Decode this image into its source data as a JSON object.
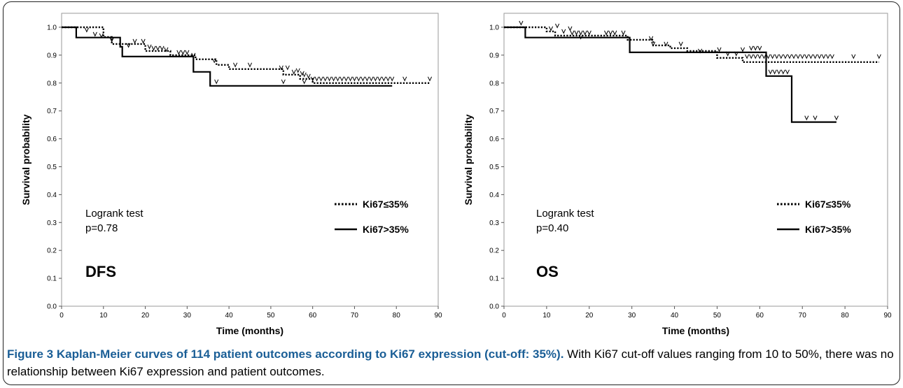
{
  "figure": {
    "caption_title": "Figure 3 Kaplan-Meier curves of 114 patient outcomes according to Ki67 expression (cut-off: 35%).",
    "caption_text": "With Ki67 cut-off values ranging from 10 to 50%, there was no relationship between Ki67 expression and patient outcomes."
  },
  "chart_data": [
    {
      "type": "line",
      "panel_label": "DFS",
      "xlabel": "Time (months)",
      "ylabel": "Survival probability",
      "xlim": [
        0,
        90
      ],
      "ylim": [
        0,
        1.05
      ],
      "xticks": [
        0,
        10,
        20,
        30,
        40,
        50,
        60,
        70,
        80,
        90
      ],
      "yticks": [
        "0.0",
        "0.1",
        "0.2",
        "0.3",
        "0.4",
        "0.5",
        "0.6",
        "0.7",
        "0.8",
        "0.9",
        "1.0"
      ],
      "grid": false,
      "legend_position": "right",
      "annotation": [
        "Logrank test",
        "p=0.78"
      ],
      "series": [
        {
          "name": "Ki67≤35%",
          "style": "dotted",
          "steps": [
            [
              0,
              1.0
            ],
            [
              10,
              0.965
            ],
            [
              12,
              0.94
            ],
            [
              20,
              0.915
            ],
            [
              26,
              0.9
            ],
            [
              32,
              0.885
            ],
            [
              37,
              0.865
            ],
            [
              40,
              0.85
            ],
            [
              53,
              0.83
            ],
            [
              57,
              0.815
            ],
            [
              60,
              0.8
            ],
            [
              88,
              0.8
            ]
          ],
          "censored": [
            [
              6,
              0.985
            ],
            [
              8,
              0.97
            ],
            [
              12,
              0.95
            ],
            [
              16,
              0.93
            ],
            [
              17.5,
              0.945
            ],
            [
              19.5,
              0.945
            ],
            [
              21,
              0.925
            ],
            [
              22,
              0.92
            ],
            [
              23,
              0.92
            ],
            [
              24,
              0.92
            ],
            [
              25,
              0.915
            ],
            [
              28,
              0.905
            ],
            [
              29,
              0.905
            ],
            [
              30,
              0.905
            ],
            [
              36.5,
              0.875
            ],
            [
              41.5,
              0.86
            ],
            [
              45,
              0.86
            ],
            [
              52.5,
              0.85
            ],
            [
              54,
              0.85
            ],
            [
              55.5,
              0.835
            ],
            [
              56.5,
              0.84
            ],
            [
              57.5,
              0.83
            ],
            [
              58,
              0.825
            ],
            [
              59,
              0.82
            ],
            [
              60,
              0.81
            ],
            [
              61,
              0.81
            ],
            [
              62,
              0.81
            ],
            [
              63,
              0.81
            ],
            [
              64,
              0.81
            ],
            [
              65,
              0.81
            ],
            [
              66,
              0.81
            ],
            [
              67,
              0.81
            ],
            [
              68,
              0.81
            ],
            [
              69,
              0.81
            ],
            [
              70,
              0.81
            ],
            [
              71,
              0.81
            ],
            [
              72,
              0.81
            ],
            [
              73,
              0.81
            ],
            [
              74,
              0.81
            ],
            [
              75,
              0.81
            ],
            [
              76,
              0.81
            ],
            [
              77,
              0.81
            ],
            [
              78,
              0.81
            ],
            [
              79,
              0.81
            ],
            [
              82,
              0.81
            ],
            [
              88,
              0.81
            ]
          ]
        },
        {
          "name": "Ki67>35%",
          "style": "solid",
          "steps": [
            [
              0,
              1.0
            ],
            [
              3.5,
              0.963
            ],
            [
              14,
              0.93
            ],
            [
              14.5,
              0.895
            ],
            [
              31.5,
              0.84
            ],
            [
              35.5,
              0.79
            ],
            [
              79,
              0.79
            ]
          ],
          "censored": [
            [
              9.5,
              0.965
            ],
            [
              31.5,
              0.895
            ],
            [
              37,
              0.8
            ],
            [
              53,
              0.8
            ],
            [
              58,
              0.8
            ]
          ]
        }
      ]
    },
    {
      "type": "line",
      "panel_label": "OS",
      "xlabel": "Time (months)",
      "ylabel": "Survival probability",
      "xlim": [
        0,
        90
      ],
      "ylim": [
        0,
        1.05
      ],
      "xticks": [
        0,
        10,
        20,
        30,
        40,
        50,
        60,
        70,
        80,
        90
      ],
      "yticks": [
        "0.0",
        "0.1",
        "0.2",
        "0.3",
        "0.4",
        "0.5",
        "0.6",
        "0.7",
        "0.8",
        "0.9",
        "1.0"
      ],
      "grid": false,
      "legend_position": "right",
      "annotation": [
        "Logrank test",
        "p=0.40"
      ],
      "series": [
        {
          "name": "Ki67≤35%",
          "style": "dotted",
          "steps": [
            [
              0,
              1.0
            ],
            [
              10,
              0.985
            ],
            [
              12,
              0.97
            ],
            [
              29,
              0.955
            ],
            [
              35,
              0.935
            ],
            [
              39,
              0.925
            ],
            [
              43,
              0.915
            ],
            [
              50,
              0.89
            ],
            [
              56,
              0.875
            ],
            [
              88,
              0.875
            ]
          ],
          "censored": [
            [
              4,
              1.01
            ],
            [
              11,
              0.99
            ],
            [
              12.5,
              1.0
            ],
            [
              14,
              0.98
            ],
            [
              15.5,
              0.99
            ],
            [
              16,
              0.975
            ],
            [
              17,
              0.975
            ],
            [
              18,
              0.975
            ],
            [
              19,
              0.975
            ],
            [
              20,
              0.975
            ],
            [
              24,
              0.975
            ],
            [
              25,
              0.975
            ],
            [
              26,
              0.975
            ],
            [
              28,
              0.975
            ],
            [
              34.5,
              0.955
            ],
            [
              35,
              0.935
            ],
            [
              38,
              0.935
            ],
            [
              41.5,
              0.935
            ],
            [
              50.5,
              0.915
            ],
            [
              52.5,
              0.9
            ],
            [
              54.5,
              0.9
            ],
            [
              56,
              0.915
            ],
            [
              57,
              0.89
            ],
            [
              58,
              0.89
            ],
            [
              59,
              0.89
            ],
            [
              60,
              0.89
            ],
            [
              61,
              0.89
            ],
            [
              62,
              0.89
            ],
            [
              63,
              0.89
            ],
            [
              64,
              0.89
            ],
            [
              65,
              0.89
            ],
            [
              66,
              0.89
            ],
            [
              67,
              0.89
            ],
            [
              68,
              0.89
            ],
            [
              69,
              0.89
            ],
            [
              70,
              0.89
            ],
            [
              71,
              0.89
            ],
            [
              72,
              0.89
            ],
            [
              73,
              0.89
            ],
            [
              74,
              0.89
            ],
            [
              75,
              0.89
            ],
            [
              76,
              0.89
            ],
            [
              77,
              0.89
            ],
            [
              82,
              0.89
            ],
            [
              88,
              0.89
            ]
          ]
        },
        {
          "name": "Ki67>35%",
          "style": "solid",
          "steps": [
            [
              0,
              1.0
            ],
            [
              5,
              0.963
            ],
            [
              29.5,
              0.91
            ],
            [
              61.5,
              0.825
            ],
            [
              67.5,
              0.66
            ],
            [
              78,
              0.66
            ]
          ],
          "censored": [
            [
              18,
              0.96
            ],
            [
              46,
              0.91
            ],
            [
              58,
              0.92
            ],
            [
              59,
              0.92
            ],
            [
              60,
              0.92
            ],
            [
              62.5,
              0.835
            ],
            [
              63.5,
              0.835
            ],
            [
              64.5,
              0.835
            ],
            [
              65.5,
              0.835
            ],
            [
              66.5,
              0.835
            ],
            [
              71,
              0.67
            ],
            [
              73,
              0.67
            ],
            [
              78,
              0.67
            ]
          ]
        }
      ]
    }
  ]
}
